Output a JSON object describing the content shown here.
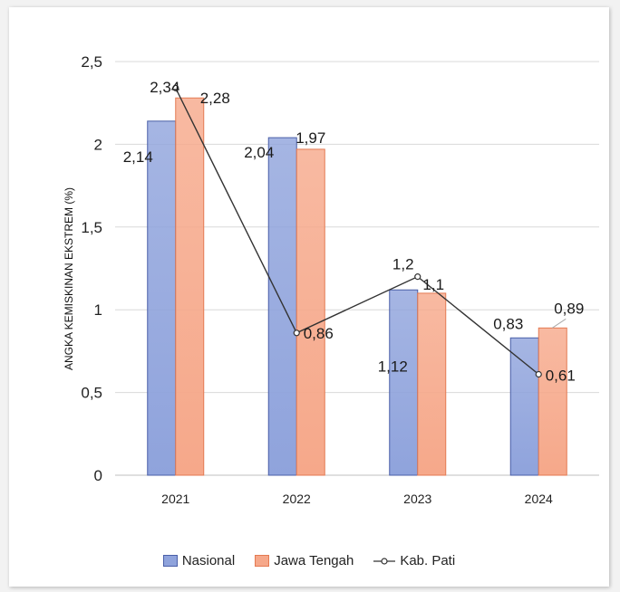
{
  "chart_data": {
    "type": "bar",
    "categories": [
      "2021",
      "2022",
      "2023",
      "2024"
    ],
    "ylabel": "ANGKA KEMISKINAN EKSTREM (%)",
    "xlabel": "",
    "ylim": [
      0,
      2.5
    ],
    "yticks": [
      "0",
      "0,5",
      "1",
      "1,5",
      "2",
      "2,5"
    ],
    "grid": true,
    "legend_position": "bottom",
    "series": [
      {
        "name": "Nasional",
        "kind": "bar",
        "values": [
          2.14,
          2.04,
          1.12,
          0.83
        ],
        "labels": [
          "2,14",
          "2,04",
          "1,12",
          "0,83"
        ],
        "color": "#8fa3dc",
        "stroke": "#4a5fa8"
      },
      {
        "name": "Jawa Tengah",
        "kind": "bar",
        "values": [
          2.28,
          1.97,
          1.1,
          0.89
        ],
        "labels": [
          "2,28",
          "1,97",
          "1,1",
          "0,89"
        ],
        "color": "#f6a88a",
        "stroke": "#e47a52"
      },
      {
        "name": "Kab. Pati",
        "kind": "line",
        "values": [
          2.34,
          0.86,
          1.2,
          0.61
        ],
        "labels": [
          "2,34",
          "0,86",
          "1,2",
          "0,61"
        ],
        "color": "#333333"
      }
    ]
  }
}
